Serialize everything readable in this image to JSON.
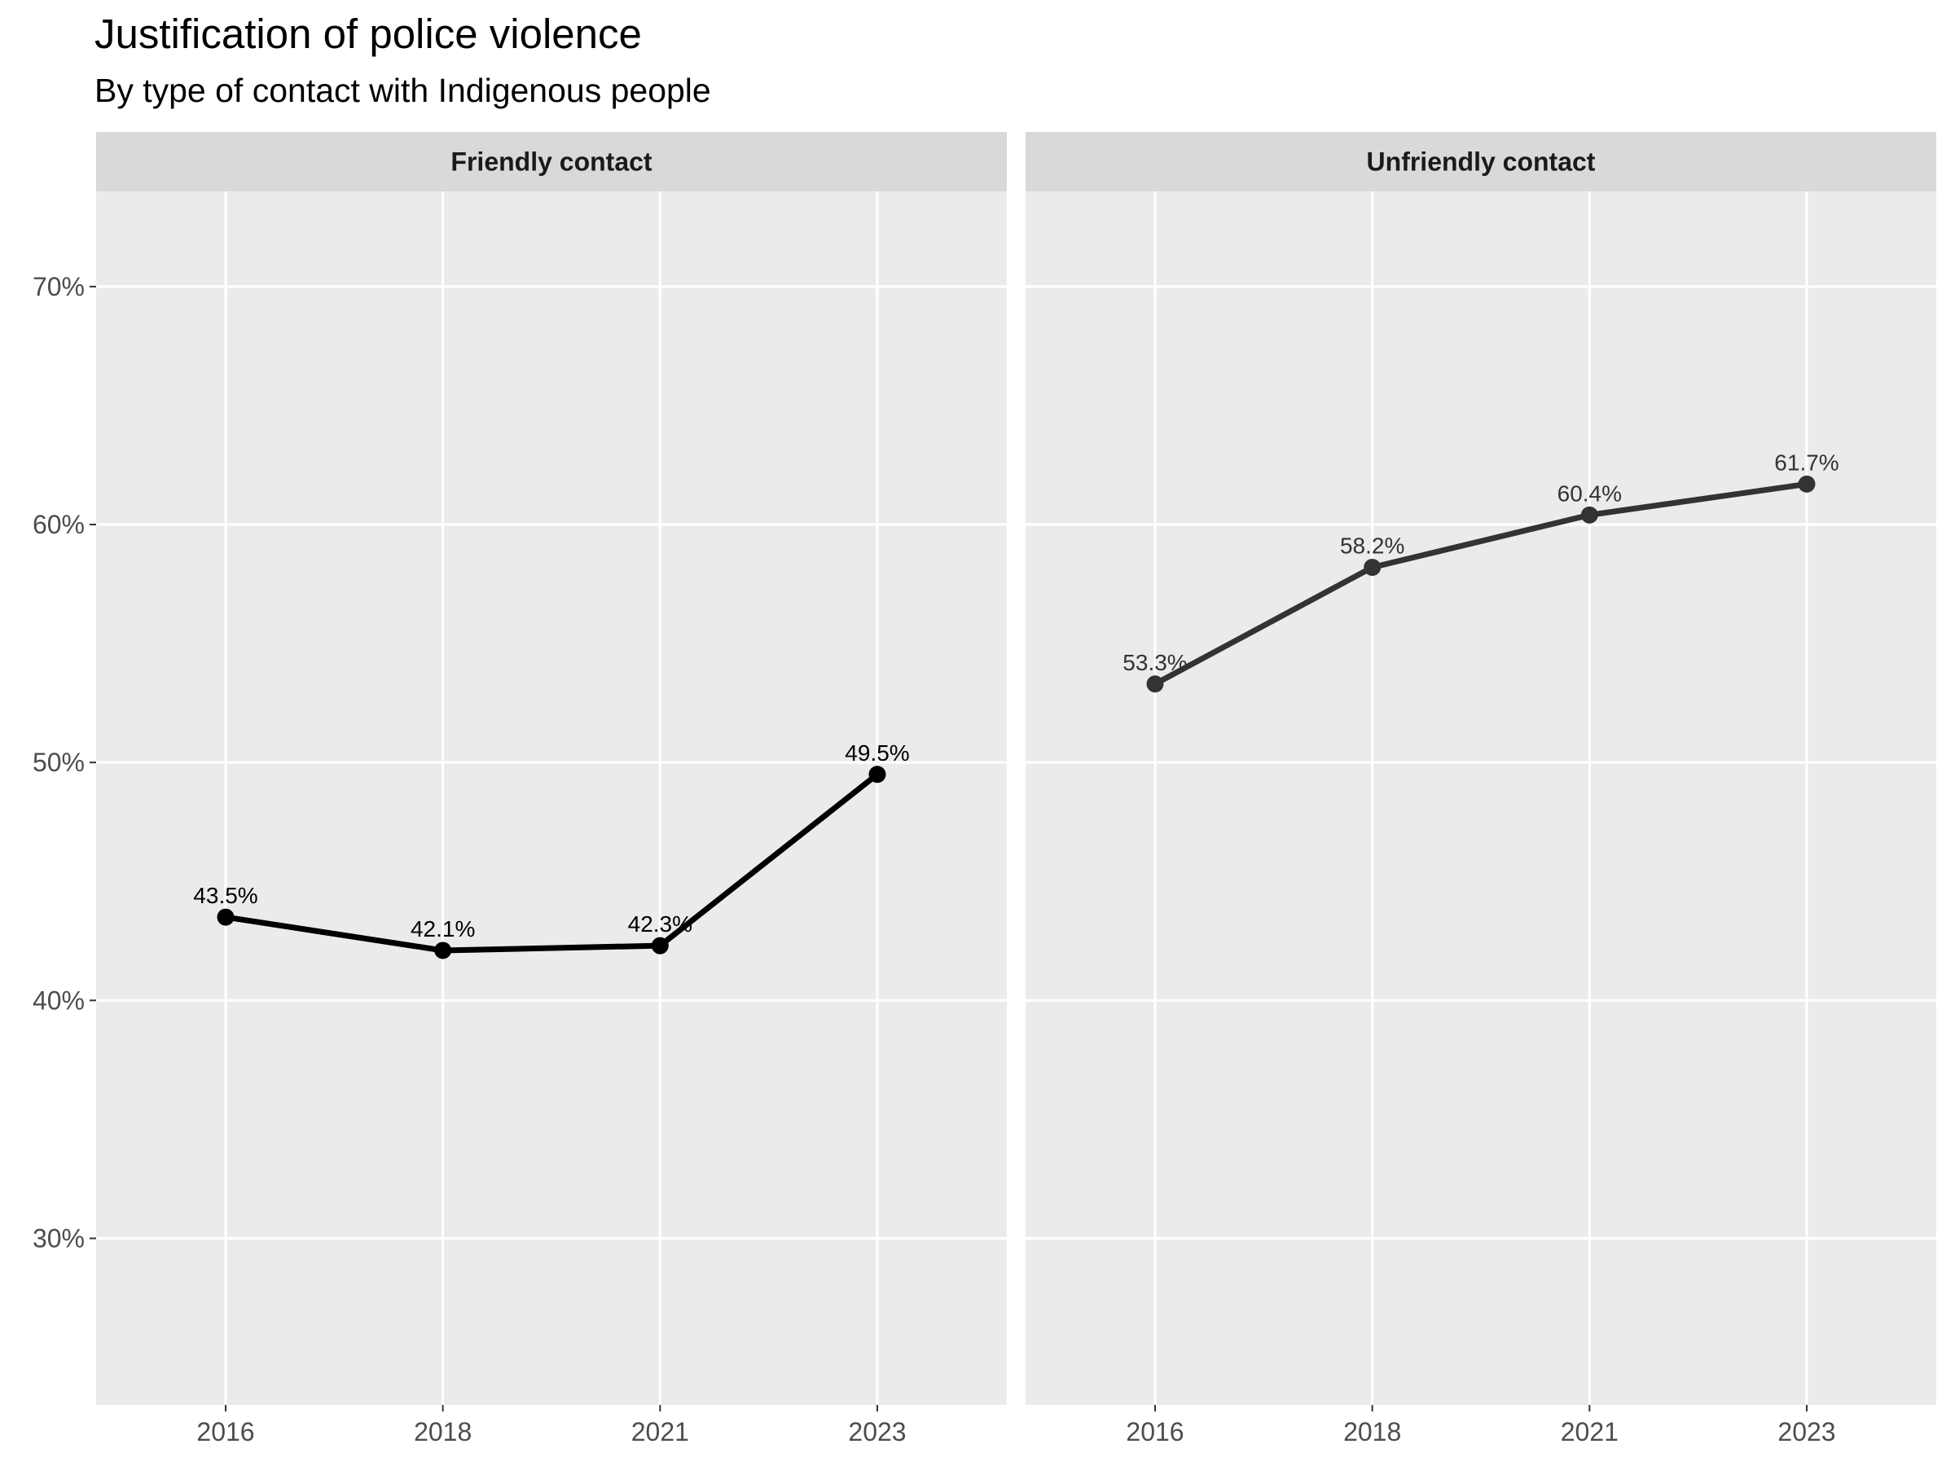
{
  "title": "Justification of police violence",
  "subtitle": "By type of contact with Indigenous people",
  "chart_data": {
    "type": "line",
    "facet_by": "type of contact",
    "x": [
      "2016",
      "2018",
      "2021",
      "2023"
    ],
    "ylim": [
      23,
      74
    ],
    "y_ticks": [
      30,
      40,
      50,
      60,
      70
    ],
    "y_tick_labels": [
      "30%",
      "40%",
      "50%",
      "60%",
      "70%"
    ],
    "grid": true,
    "panels": [
      {
        "strip_label": "Friendly contact",
        "values": [
          43.5,
          42.1,
          42.3,
          49.5
        ],
        "labels": [
          "43.5%",
          "42.1%",
          "42.3%",
          "49.5%"
        ],
        "color": "#000000"
      },
      {
        "strip_label": "Unfriendly contact",
        "values": [
          53.3,
          58.2,
          60.4,
          61.7
        ],
        "labels": [
          "53.3%",
          "58.2%",
          "60.4%",
          "61.7%"
        ],
        "color": "#333333"
      }
    ]
  },
  "colors": {
    "panel_background": "#ebebeb",
    "strip_background": "#d9d9d9",
    "grid": "#ffffff",
    "axis_text": "#4d4d4d"
  }
}
